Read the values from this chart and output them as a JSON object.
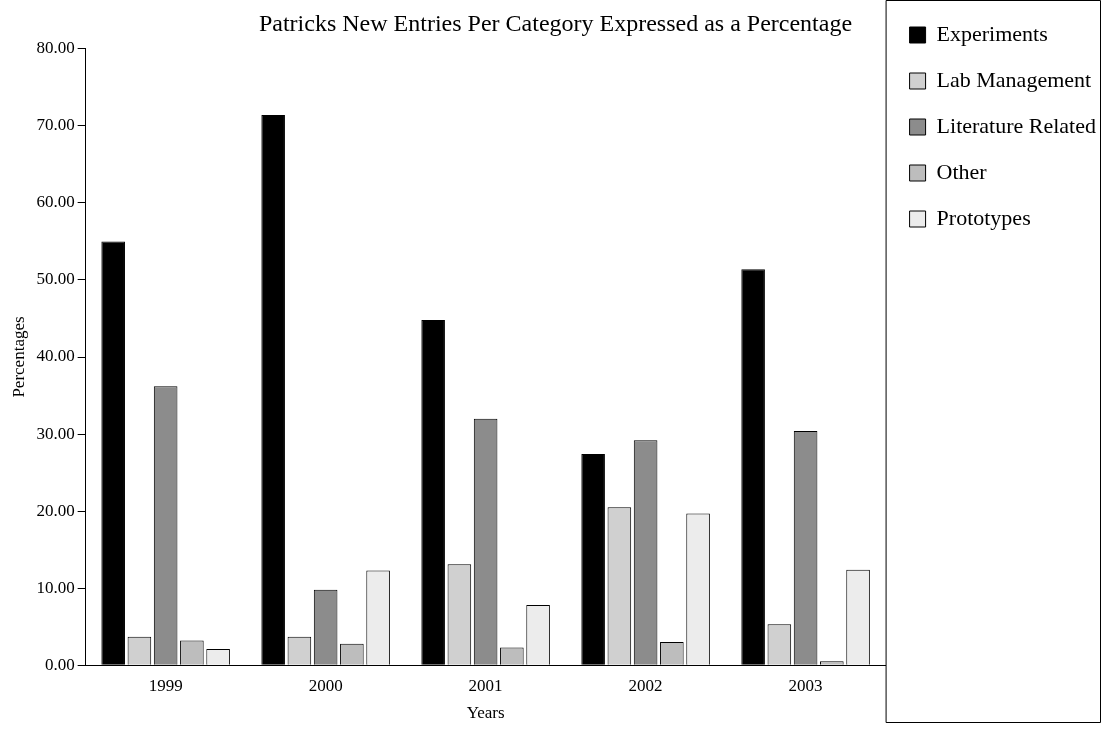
{
  "chart_data": {
    "type": "bar",
    "title": "Patricks New Entries Per Category Expressed as a Percentage",
    "xlabel": "Years",
    "ylabel": "Percentages",
    "categories": [
      "1999",
      "2000",
      "2001",
      "2002",
      "2003"
    ],
    "series": [
      {
        "name": "Experiments",
        "color": "#000000",
        "values": [
          55.0,
          71.4,
          44.8,
          27.4,
          51.4
        ]
      },
      {
        "name": "Lab Management",
        "color": "#d0d0d0",
        "values": [
          3.7,
          3.7,
          13.1,
          20.5,
          5.3
        ]
      },
      {
        "name": "Literature Related",
        "color": "#8c8c8c",
        "values": [
          36.2,
          9.8,
          32.0,
          29.2,
          30.4
        ]
      },
      {
        "name": "Other",
        "color": "#bdbdbd",
        "values": [
          3.2,
          2.8,
          2.3,
          3.0,
          0.5
        ]
      },
      {
        "name": "Prototypes",
        "color": "#ececec",
        "values": [
          2.1,
          12.3,
          7.8,
          19.7,
          12.4
        ]
      }
    ],
    "ylim": [
      0,
      80
    ],
    "yticks": [
      {
        "value": 0,
        "label": "0.00"
      },
      {
        "value": 10,
        "label": "10.00"
      },
      {
        "value": 20,
        "label": "20.00"
      },
      {
        "value": 30,
        "label": "30.00"
      },
      {
        "value": 40,
        "label": "40.00"
      },
      {
        "value": 50,
        "label": "50.00"
      },
      {
        "value": 60,
        "label": "60.00"
      },
      {
        "value": 70,
        "label": "70.00"
      },
      {
        "value": 80,
        "label": "80.00"
      }
    ],
    "grid": false,
    "legend": "right"
  }
}
